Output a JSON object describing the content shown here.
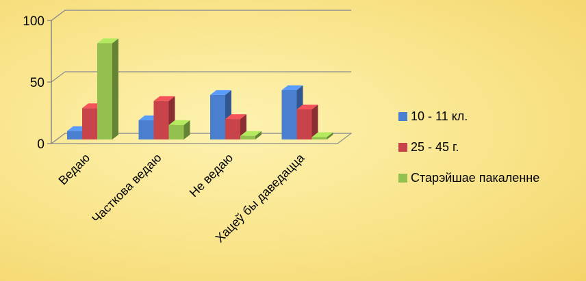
{
  "chart_data": {
    "type": "bar",
    "categories": [
      "Ведаю",
      "Часткова ведаю",
      "Не ведаю",
      "Хацеў бы даведацца"
    ],
    "series": [
      {
        "name": "10 - 11 кл.",
        "values": [
          7,
          16,
          37,
          41
        ],
        "color": "#4a7fd0"
      },
      {
        "name": "25 - 45 г.",
        "values": [
          26,
          32,
          17,
          25
        ],
        "color": "#c9444a"
      },
      {
        "name": "Старэйшае пакаленне",
        "values": [
          80,
          12,
          3,
          2
        ],
        "color": "#93c04e"
      }
    ],
    "yticks": [
      "0",
      "50",
      "100"
    ],
    "ylim": [
      0,
      100
    ],
    "grid": true,
    "legend_position": "right",
    "style": "3d-clustered-column"
  }
}
